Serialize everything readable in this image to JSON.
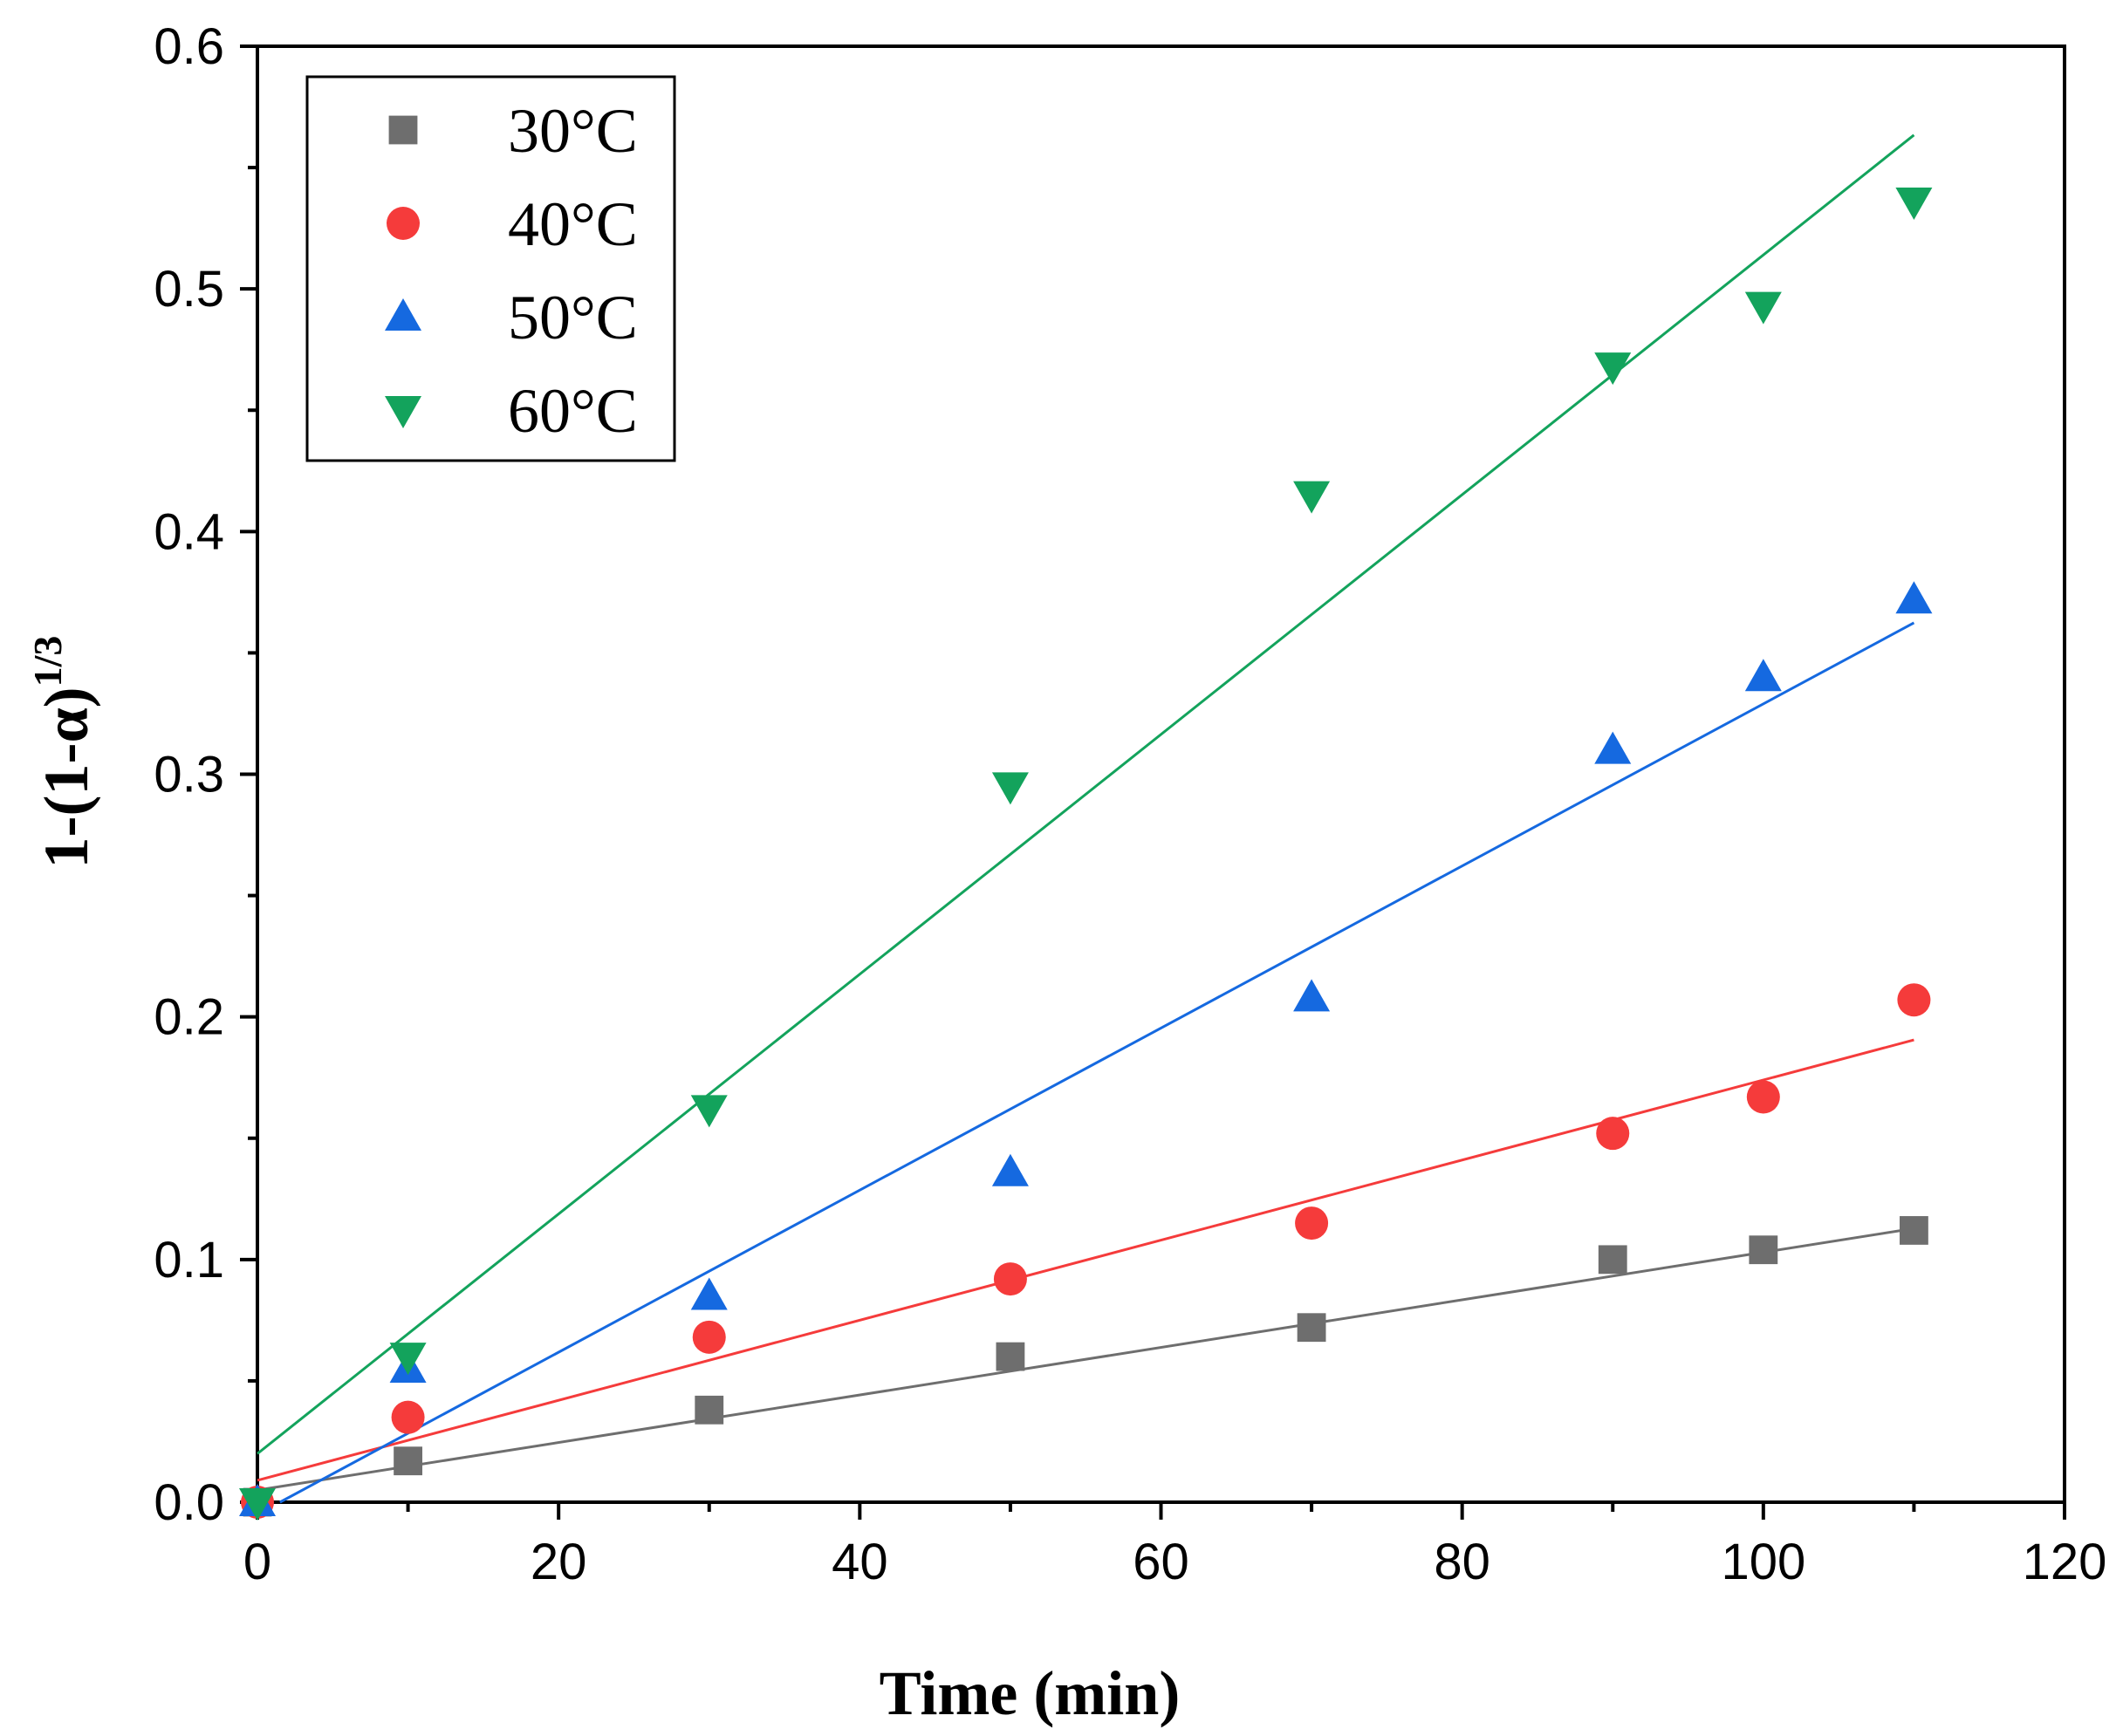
{
  "chart_data": {
    "type": "scatter",
    "title": "",
    "xlabel": "Time (min)",
    "ylabel": {
      "base": "1-(1-α)",
      "superscript": "1/3"
    },
    "xlim": [
      0,
      120
    ],
    "ylim": [
      0.0,
      0.6
    ],
    "x_ticks": [
      0,
      20,
      40,
      60,
      80,
      100,
      120
    ],
    "x_tick_labels": [
      "0",
      "20",
      "40",
      "60",
      "80",
      "100",
      "120"
    ],
    "y_ticks": [
      0.0,
      0.1,
      0.2,
      0.3,
      0.4,
      0.5,
      0.6
    ],
    "y_tick_labels": [
      "0.0",
      "0.1",
      "0.2",
      "0.3",
      "0.4",
      "0.5",
      "0.6"
    ],
    "grid": false,
    "legend_position": "top-left",
    "x": [
      0,
      10,
      30,
      50,
      70,
      90,
      100,
      110
    ],
    "series": [
      {
        "name": "30°C",
        "color": "#6e6e6e",
        "marker": "square",
        "values": [
          0.0,
          0.017,
          0.038,
          0.06,
          0.072,
          0.1,
          0.104,
          0.112
        ],
        "fit": {
          "intercept": 0.005,
          "slope": 0.00098
        }
      },
      {
        "name": "40°C",
        "color": "#f53b3b",
        "marker": "circle",
        "values": [
          0.0,
          0.035,
          0.068,
          0.092,
          0.115,
          0.152,
          0.167,
          0.207
        ],
        "fit": {
          "intercept": 0.009,
          "slope": 0.00165
        }
      },
      {
        "name": "50°C",
        "color": "#1569e0",
        "marker": "triangle-up",
        "values": [
          0.0,
          0.055,
          0.085,
          0.136,
          0.208,
          0.31,
          0.34,
          0.372
        ],
        "fit": {
          "intercept": -0.005,
          "slope": 0.00334
        }
      },
      {
        "name": "60°C",
        "color": "#13a35c",
        "marker": "triangle-down",
        "values": [
          0.0,
          0.06,
          0.162,
          0.295,
          0.415,
          0.468,
          0.493,
          0.536
        ],
        "fit": {
          "intercept": 0.02,
          "slope": 0.00494
        }
      }
    ]
  }
}
